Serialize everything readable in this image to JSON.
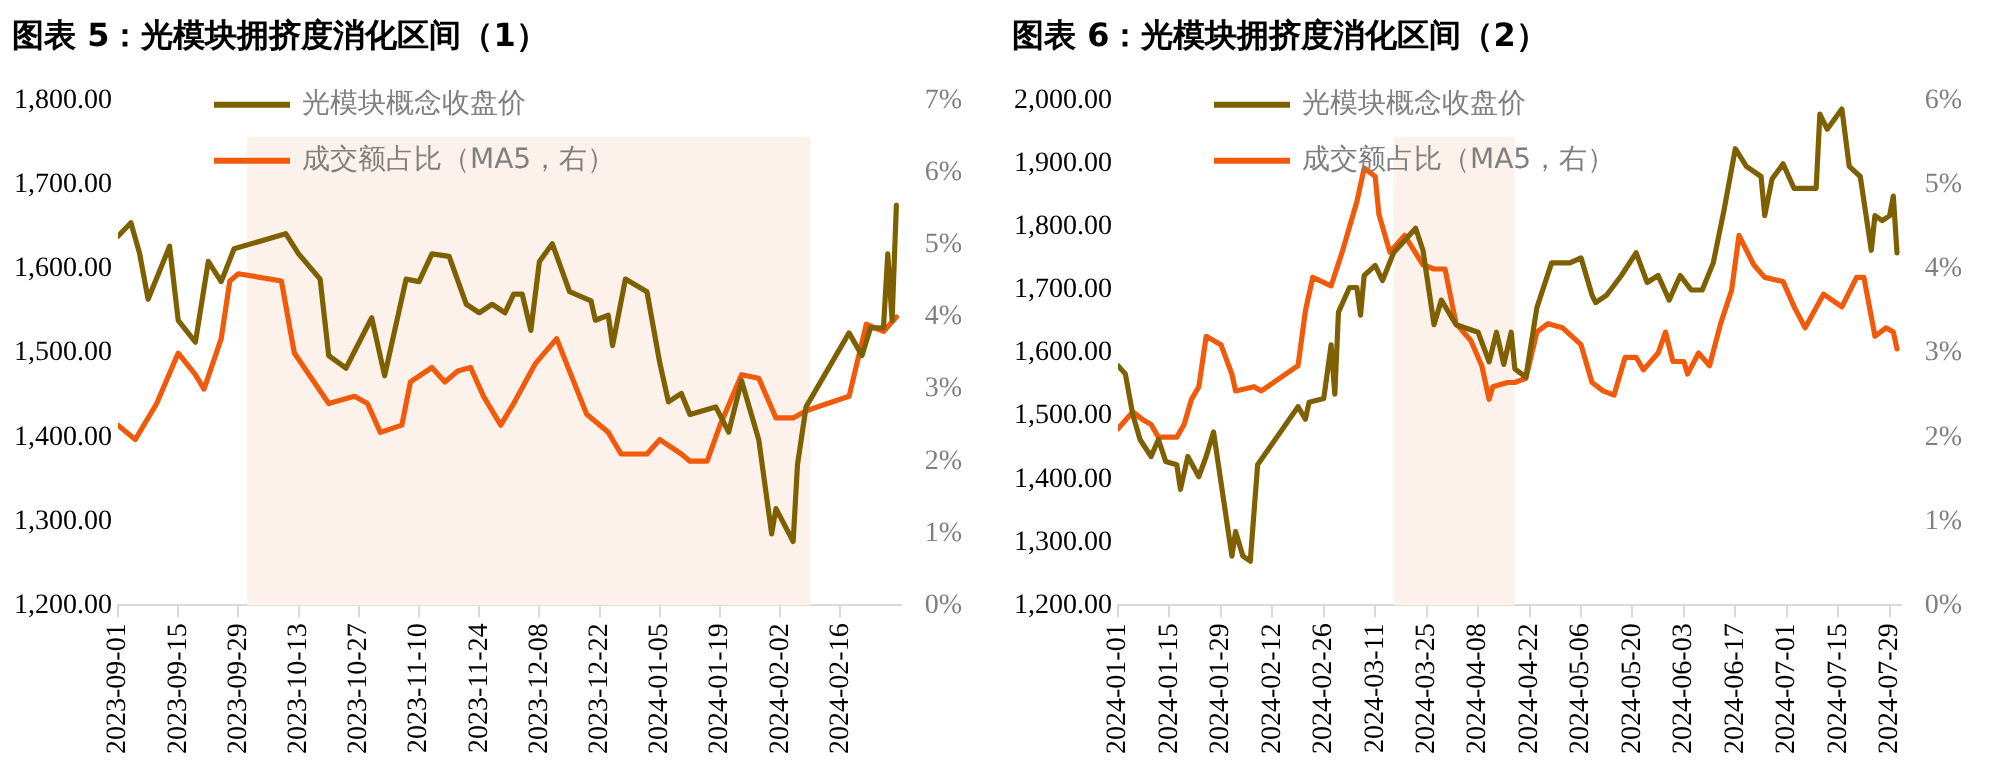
{
  "chart_data": [
    {
      "type": "line",
      "title": "图表 5：光模块拥挤度消化区间（1）",
      "legend": "top",
      "grid": false,
      "xlim": [
        "2023-09-01",
        "2024-03-01"
      ],
      "xticks": [
        "2023-09-01",
        "2023-09-15",
        "2023-09-29",
        "2023-10-13",
        "2023-10-27",
        "2023-11-10",
        "2023-11-24",
        "2023-12-08",
        "2023-12-22",
        "2024-01-05",
        "2024-01-19",
        "2024-02-02",
        "2024-02-16"
      ],
      "ylim": [
        1200,
        1800
      ],
      "yticks": [
        {
          "value": 1200,
          "label": "1,200.00"
        },
        {
          "value": 1300,
          "label": "1,300.00"
        },
        {
          "value": 1400,
          "label": "1,400.00"
        },
        {
          "value": 1500,
          "label": "1,500.00"
        },
        {
          "value": 1600,
          "label": "1,600.00"
        },
        {
          "value": 1700,
          "label": "1,700.00"
        },
        {
          "value": 1800,
          "label": "1,800.00"
        }
      ],
      "y2lim": [
        0,
        7
      ],
      "y2ticks": [
        {
          "value": 0,
          "label": "0%"
        },
        {
          "value": 1,
          "label": "1%"
        },
        {
          "value": 2,
          "label": "2%"
        },
        {
          "value": 3,
          "label": "3%"
        },
        {
          "value": 4,
          "label": "4%"
        },
        {
          "value": 5,
          "label": "5%"
        },
        {
          "value": 6,
          "label": "6%"
        },
        {
          "value": 7,
          "label": "7%"
        }
      ],
      "bands": [
        {
          "axis": "x",
          "from": "2023-10-01",
          "to": "2024-02-09",
          "color": "#fdf1ec"
        }
      ],
      "series": [
        {
          "name": "光模块概念收盘价",
          "color": "#7f6000",
          "x": [
            "2023-09-01",
            "2023-09-04",
            "2023-09-06",
            "2023-09-08",
            "2023-09-13",
            "2023-09-15",
            "2023-09-19",
            "2023-09-22",
            "2023-09-25",
            "2023-09-28",
            "2023-10-10",
            "2023-10-13",
            "2023-10-18",
            "2023-10-20",
            "2023-10-24",
            "2023-10-30",
            "2023-11-02",
            "2023-11-07",
            "2023-11-10",
            "2023-11-13",
            "2023-11-17",
            "2023-11-21",
            "2023-11-24",
            "2023-11-27",
            "2023-11-30",
            "2023-12-02",
            "2023-12-04",
            "2023-12-06",
            "2023-12-08",
            "2023-12-11",
            "2023-12-15",
            "2023-12-20",
            "2023-12-21",
            "2023-12-24",
            "2023-12-25",
            "2023-12-28",
            "2024-01-02",
            "2024-01-05",
            "2024-01-07",
            "2024-01-10",
            "2024-01-12",
            "2024-01-18",
            "2024-01-21",
            "2024-01-24",
            "2024-01-28",
            "2024-01-31",
            "2024-02-01",
            "2024-02-05",
            "2024-02-06",
            "2024-02-08",
            "2024-02-18",
            "2024-02-21",
            "2024-02-23",
            "2024-02-26",
            "2024-02-27",
            "2024-02-28",
            "2024-02-29"
          ],
          "values": [
            1639,
            1655,
            1619,
            1564,
            1627,
            1539,
            1513,
            1609,
            1585,
            1624,
            1642,
            1618,
            1588,
            1497,
            1482,
            1542,
            1473,
            1588,
            1585,
            1618,
            1615,
            1558,
            1548,
            1558,
            1548,
            1570,
            1570,
            1527,
            1609,
            1630,
            1573,
            1562,
            1539,
            1545,
            1509,
            1588,
            1573,
            1488,
            1442,
            1452,
            1427,
            1436,
            1406,
            1467,
            1397,
            1285,
            1315,
            1276,
            1367,
            1436,
            1524,
            1497,
            1530,
            1530,
            1618,
            1539,
            1676
          ]
        },
        {
          "name": "成交额占比（MA5，右）",
          "color": "#f05a0a",
          "axis": "y2",
          "x": [
            "2023-09-01",
            "2023-09-05",
            "2023-09-10",
            "2023-09-15",
            "2023-09-19",
            "2023-09-21",
            "2023-09-25",
            "2023-09-27",
            "2023-09-29",
            "2023-10-09",
            "2023-10-12",
            "2023-10-20",
            "2023-10-26",
            "2023-10-29",
            "2023-11-01",
            "2023-11-06",
            "2023-11-08",
            "2023-11-13",
            "2023-11-16",
            "2023-11-19",
            "2023-11-22",
            "2023-11-25",
            "2023-11-29",
            "2023-12-02",
            "2023-12-07",
            "2023-12-12",
            "2023-12-15",
            "2023-12-19",
            "2023-12-24",
            "2023-12-27",
            "2024-01-02",
            "2024-01-05",
            "2024-01-10",
            "2024-01-12",
            "2024-01-16",
            "2024-01-19",
            "2024-01-24",
            "2024-01-28",
            "2024-02-01",
            "2024-02-05",
            "2024-02-08",
            "2024-02-18",
            "2024-02-22",
            "2024-02-26",
            "2024-02-29"
          ],
          "values": [
            2.5,
            2.3,
            2.8,
            3.5,
            3.2,
            3.0,
            3.7,
            4.5,
            4.6,
            4.5,
            3.5,
            2.8,
            2.9,
            2.8,
            2.4,
            2.5,
            3.1,
            3.3,
            3.1,
            3.25,
            3.3,
            2.9,
            2.5,
            2.8,
            3.35,
            3.7,
            3.25,
            2.65,
            2.4,
            2.1,
            2.1,
            2.3,
            2.1,
            2.0,
            2.0,
            2.5,
            3.2,
            3.15,
            2.6,
            2.6,
            2.7,
            2.9,
            3.9,
            3.8,
            4.0
          ]
        }
      ]
    },
    {
      "type": "line",
      "title": "图表 6：光模块拥挤度消化区间（2）",
      "legend": "top",
      "grid": false,
      "xlim": [
        "2024-01-01",
        "2024-08-01"
      ],
      "xticks": [
        "2024-01-01",
        "2024-01-15",
        "2024-01-29",
        "2024-02-12",
        "2024-02-26",
        "2024-03-11",
        "2024-03-25",
        "2024-04-08",
        "2024-04-22",
        "2024-05-06",
        "2024-05-20",
        "2024-06-03",
        "2024-06-17",
        "2024-07-01",
        "2024-07-15",
        "2024-07-29"
      ],
      "ylim": [
        1200,
        2000
      ],
      "yticks": [
        {
          "value": 1200,
          "label": "1,200.00"
        },
        {
          "value": 1300,
          "label": "1,300.00"
        },
        {
          "value": 1400,
          "label": "1,400.00"
        },
        {
          "value": 1500,
          "label": "1,500.00"
        },
        {
          "value": 1600,
          "label": "1,600.00"
        },
        {
          "value": 1700,
          "label": "1,700.00"
        },
        {
          "value": 1800,
          "label": "1,800.00"
        },
        {
          "value": 1900,
          "label": "1,900.00"
        },
        {
          "value": 2000,
          "label": "2,000.00"
        }
      ],
      "y2lim": [
        0,
        6
      ],
      "y2ticks": [
        {
          "value": 0,
          "label": "0%"
        },
        {
          "value": 1,
          "label": "1%"
        },
        {
          "value": 2,
          "label": "2%"
        },
        {
          "value": 3,
          "label": "3%"
        },
        {
          "value": 4,
          "label": "4%"
        },
        {
          "value": 5,
          "label": "5%"
        },
        {
          "value": 6,
          "label": "6%"
        }
      ],
      "bands": [
        {
          "axis": "x",
          "from": "2024-03-16",
          "to": "2024-04-18",
          "color": "#fdf1ec"
        }
      ],
      "series": [
        {
          "name": "光模块概念收盘价",
          "color": "#7f6000",
          "x": [
            "2024-01-01",
            "2024-01-03",
            "2024-01-05",
            "2024-01-07",
            "2024-01-10",
            "2024-01-12",
            "2024-01-14",
            "2024-01-17",
            "2024-01-18",
            "2024-01-20",
            "2024-01-23",
            "2024-01-25",
            "2024-01-27",
            "2024-02-01",
            "2024-02-02",
            "2024-02-04",
            "2024-02-06",
            "2024-02-08",
            "2024-02-19",
            "2024-02-21",
            "2024-02-22",
            "2024-02-26",
            "2024-02-28",
            "2024-02-29",
            "2024-03-01",
            "2024-03-04",
            "2024-03-06",
            "2024-03-07",
            "2024-03-08",
            "2024-03-11",
            "2024-03-13",
            "2024-03-16",
            "2024-03-22",
            "2024-03-24",
            "2024-03-27",
            "2024-03-29",
            "2024-04-02",
            "2024-04-08",
            "2024-04-11",
            "2024-04-13",
            "2024-04-15",
            "2024-04-17",
            "2024-04-18",
            "2024-04-21",
            "2024-04-24",
            "2024-04-28",
            "2024-05-03",
            "2024-05-06",
            "2024-05-09",
            "2024-05-10",
            "2024-05-13",
            "2024-05-17",
            "2024-05-21",
            "2024-05-24",
            "2024-05-27",
            "2024-05-30",
            "2024-06-02",
            "2024-06-05",
            "2024-06-08",
            "2024-06-11",
            "2024-06-14",
            "2024-06-17",
            "2024-06-20",
            "2024-06-24",
            "2024-06-25",
            "2024-06-27",
            "2024-06-30",
            "2024-07-03",
            "2024-07-09",
            "2024-07-10",
            "2024-07-12",
            "2024-07-16",
            "2024-07-18",
            "2024-07-21",
            "2024-07-24",
            "2024-07-25",
            "2024-07-27",
            "2024-07-29",
            "2024-07-30",
            "2024-07-31"
          ],
          "values": [
            1580,
            1567,
            1503,
            1463,
            1436,
            1463,
            1428,
            1423,
            1384,
            1436,
            1404,
            1436,
            1475,
            1278,
            1317,
            1278,
            1270,
            1423,
            1515,
            1495,
            1522,
            1528,
            1613,
            1535,
            1665,
            1704,
            1704,
            1660,
            1723,
            1739,
            1715,
            1759,
            1798,
            1763,
            1645,
            1684,
            1645,
            1633,
            1586,
            1633,
            1582,
            1633,
            1575,
            1562,
            1672,
            1743,
            1743,
            1751,
            1692,
            1680,
            1692,
            1723,
            1759,
            1712,
            1723,
            1684,
            1723,
            1700,
            1700,
            1743,
            1829,
            1924,
            1896,
            1880,
            1818,
            1876,
            1900,
            1861,
            1861,
            1979,
            1955,
            1987,
            1896,
            1880,
            1763,
            1818,
            1810,
            1818,
            1849,
            1759
          ]
        },
        {
          "name": "成交额占比（MA5，右）",
          "color": "#f05a0a",
          "axis": "y2",
          "x": [
            "2024-01-01",
            "2024-01-05",
            "2024-01-08",
            "2024-01-10",
            "2024-01-12",
            "2024-01-17",
            "2024-01-19",
            "2024-01-21",
            "2024-01-23",
            "2024-01-25",
            "2024-01-29",
            "2024-02-01",
            "2024-02-02",
            "2024-02-07",
            "2024-02-09",
            "2024-02-19",
            "2024-02-21",
            "2024-02-23",
            "2024-02-28",
            "2024-03-02",
            "2024-03-06",
            "2024-03-08",
            "2024-03-11",
            "2024-03-12",
            "2024-03-15",
            "2024-03-19",
            "2024-03-24",
            "2024-03-27",
            "2024-03-30",
            "2024-04-02",
            "2024-04-06",
            "2024-04-09",
            "2024-04-11",
            "2024-04-12",
            "2024-04-16",
            "2024-04-18",
            "2024-04-21",
            "2024-04-24",
            "2024-04-27",
            "2024-05-01",
            "2024-05-06",
            "2024-05-09",
            "2024-05-12",
            "2024-05-15",
            "2024-05-18",
            "2024-05-21",
            "2024-05-23",
            "2024-05-27",
            "2024-05-29",
            "2024-05-31",
            "2024-06-03",
            "2024-06-04",
            "2024-06-07",
            "2024-06-10",
            "2024-06-13",
            "2024-06-16",
            "2024-06-18",
            "2024-06-22",
            "2024-06-25",
            "2024-06-30",
            "2024-07-03",
            "2024-07-06",
            "2024-07-11",
            "2024-07-16",
            "2024-07-20",
            "2024-07-22",
            "2024-07-25",
            "2024-07-28",
            "2024-07-30",
            "2024-07-31"
          ],
          "values": [
            2.1,
            2.3,
            2.2,
            2.15,
            2.0,
            2.0,
            2.15,
            2.45,
            2.6,
            3.2,
            3.1,
            2.75,
            2.55,
            2.6,
            2.55,
            2.85,
            3.5,
            3.9,
            3.8,
            4.2,
            4.8,
            5.2,
            5.1,
            4.65,
            4.2,
            4.4,
            4.05,
            4.0,
            4.0,
            3.35,
            3.15,
            2.85,
            2.45,
            2.6,
            2.65,
            2.65,
            2.7,
            3.25,
            3.35,
            3.3,
            3.1,
            2.65,
            2.55,
            2.5,
            2.95,
            2.95,
            2.8,
            3.0,
            3.25,
            2.9,
            2.9,
            2.75,
            3.0,
            2.85,
            3.35,
            3.75,
            4.4,
            4.05,
            3.9,
            3.85,
            3.55,
            3.3,
            3.7,
            3.55,
            3.9,
            3.9,
            3.2,
            3.3,
            3.25,
            3.05
          ]
        }
      ]
    }
  ]
}
